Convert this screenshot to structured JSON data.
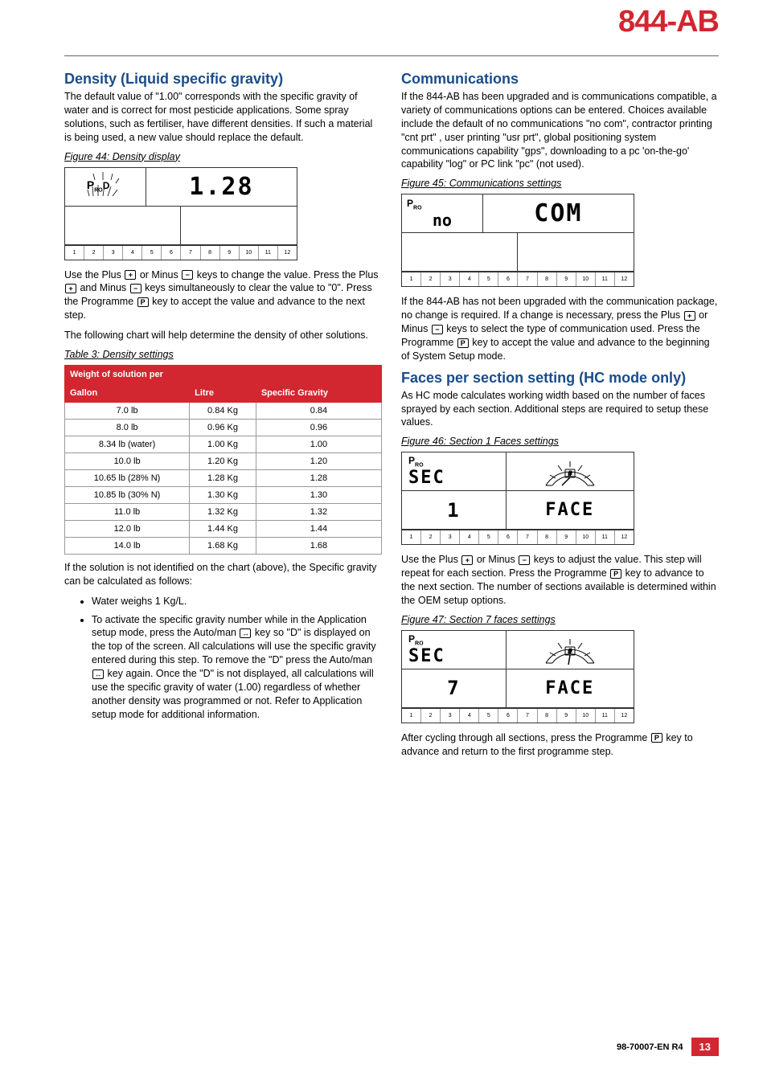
{
  "doc_title": "844-AB",
  "left": {
    "h_density": "Density (Liquid specific gravity)",
    "p_density_intro": "The default value of \"1.00\" corresponds with the specific gravity of water and is correct for most pesticide applications. Some spray solutions, such as fertiliser, have different densities. If such a material is being used, a new value should replace the default.",
    "fig44_caption": "Figure 44: Density display",
    "fig44_mode": "P D",
    "fig44_value": "1.28",
    "p_density_keys_1": "Use the Plus ",
    "p_density_keys_2": " or Minus ",
    "p_density_keys_3": " keys to change the value. Press the Plus ",
    "p_density_keys_4": " and Minus ",
    "p_density_keys_5": " keys simultaneously to clear the value to \"0\". Press the Programme ",
    "p_density_keys_6": " key to accept the value and advance to the next step.",
    "p_chart_intro": "The following chart will help determine the density of other solutions.",
    "table3_caption": "Table 3: Density settings",
    "table3_header1": "Weight of solution per",
    "table3_col1": "Gallon",
    "table3_col2": "Litre",
    "table3_col3": "Specific Gravity",
    "table3_rows": [
      [
        "7.0 lb",
        "0.84 Kg",
        "0.84"
      ],
      [
        "8.0 lb",
        "0.96 Kg",
        "0.96"
      ],
      [
        "8.34 lb (water)",
        "1.00 Kg",
        "1.00"
      ],
      [
        "10.0 lb",
        "1.20 Kg",
        "1.20"
      ],
      [
        "10.65 lb (28% N)",
        "1.28 Kg",
        "1.28"
      ],
      [
        "10.85 lb (30% N)",
        "1.30 Kg",
        "1.30"
      ],
      [
        "11.0 lb",
        "1.32 Kg",
        "1.32"
      ],
      [
        "12.0 lb",
        "1.44 Kg",
        "1.44"
      ],
      [
        "14.0 lb",
        "1.68 Kg",
        "1.68"
      ]
    ],
    "p_calc_intro": "If the solution is not identified on the chart (above), the Specific gravity can be calculated as follows:",
    "bullet1": "Water weighs 1 Kg/L.",
    "bullet2_1": "To activate the specific gravity number while in the Application setup mode, press the Auto/man ",
    "bullet2_2": " key so \"D\" is displayed on the top of the screen. All calculations will use the specific gravity entered during this step. To remove the \"D\" press the Auto/man ",
    "bullet2_3": " key again. Once the \"D\" is not displayed, all calculations will use the specific gravity of water (1.00) regardless of whether another density was programmed or not. Refer to Application setup mode for additional information."
  },
  "right": {
    "h_comm": "Communications",
    "p_comm_intro": "If the 844-AB has been upgraded and is communications compatible, a variety of communications options can be entered. Choices available include the default of no communications \"no com\", contractor printing \"cnt prt\" , user printing \"usr prt\", global positioning system communications capability \"gps\", downloading to a pc 'on-the-go' capability \"log\"  or PC link \"pc\" (not used).",
    "fig45_caption": "Figure 45: Communications settings",
    "fig45_left": "no",
    "fig45_right": "COM",
    "p_comm_keys_1": "If the 844-AB has not been upgraded with the communication package, no change is required. If a change is necessary, press the Plus ",
    "p_comm_keys_2": " or Minus ",
    "p_comm_keys_3": " keys to select the type of communication used. Press the Programme ",
    "p_comm_keys_4": " key to accept the value and advance to the beginning of System Setup mode.",
    "h_faces": "Faces per section setting (HC mode only)",
    "p_faces_intro": "As HC mode calculates working width based on the number of faces sprayed by each section. Additional steps are required to setup these values.",
    "fig46_caption": "Figure 46: Section 1 Faces settings",
    "fig46_sec": "SEC",
    "fig46_num": "1",
    "fig46_face": "FACE",
    "p_faces_keys_1": "Use the Plus ",
    "p_faces_keys_2": " or Minus ",
    "p_faces_keys_3": " keys to adjust the value. This step will repeat for each section. Press the Programme ",
    "p_faces_keys_4": " key to advance to the next section. The number of sections available is determined within the OEM setup options.",
    "fig47_caption": "Figure 47: Section 7 faces settings",
    "fig47_sec": "SEC",
    "fig47_num": "7",
    "fig47_face": "FACE",
    "p_cycle_1": "After cycling through all sections, press the Programme ",
    "p_cycle_2": " key to advance and return to the first programme step."
  },
  "footer": {
    "docnum": "98-70007-EN R4",
    "page": "13"
  },
  "colors": {
    "brand_red": "#d22630",
    "heading_blue": "#1a4c8b"
  },
  "key_labels": {
    "plus": "+",
    "minus": "−",
    "prog": "P",
    "auto": "↔"
  },
  "lcd_footer_cells": [
    "1",
    "2",
    "3",
    "4",
    "5",
    "6",
    "7",
    "8",
    "9",
    "10",
    "11",
    "12"
  ]
}
